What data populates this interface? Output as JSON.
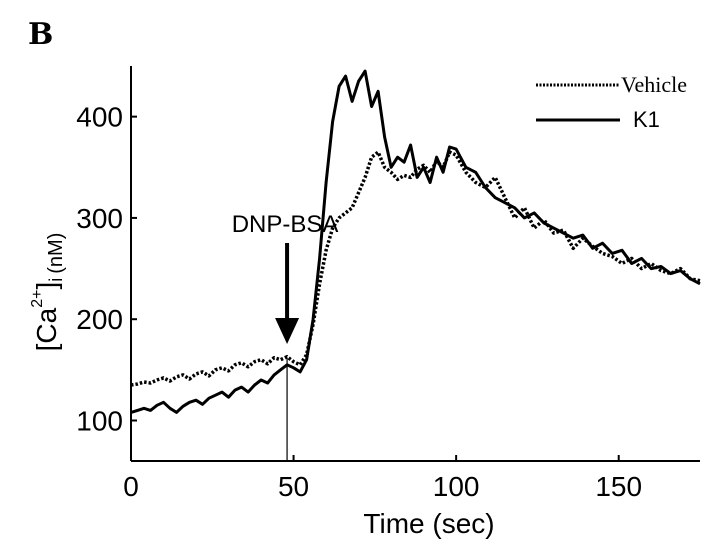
{
  "panel_label": "B",
  "chart_data": {
    "type": "line",
    "xlabel": "Time (sec)",
    "ylabel_main": "[Ca",
    "ylabel_super": "2+",
    "ylabel_close": "]",
    "ylabel_sub": "i",
    "ylabel_unit": "(nM)",
    "xlim": [
      0,
      175
    ],
    "ylim": [
      60,
      450
    ],
    "xticks": [
      0,
      50,
      100,
      150
    ],
    "yticks": [
      100,
      200,
      300,
      400
    ],
    "legend_position": "top-right",
    "annotation": {
      "text": "DNP-BSA",
      "x": 48
    },
    "series": [
      {
        "name": "Vehicle",
        "style": "dotted",
        "x": [
          0,
          2,
          4,
          6,
          8,
          10,
          12,
          14,
          16,
          18,
          20,
          22,
          24,
          26,
          28,
          30,
          32,
          34,
          36,
          38,
          40,
          42,
          44,
          46,
          48,
          50,
          52,
          54,
          56,
          58,
          60,
          62,
          64,
          66,
          68,
          70,
          72,
          74,
          76,
          78,
          80,
          82,
          84,
          86,
          88,
          90,
          92,
          94,
          96,
          98,
          100,
          103,
          106,
          109,
          112,
          115,
          118,
          121,
          124,
          127,
          130,
          133,
          136,
          139,
          142,
          145,
          148,
          151,
          154,
          157,
          160,
          163,
          166,
          169,
          172,
          175
        ],
        "values": [
          135,
          136,
          138,
          137,
          140,
          142,
          139,
          143,
          145,
          141,
          146,
          148,
          144,
          150,
          152,
          149,
          155,
          157,
          153,
          158,
          160,
          156,
          162,
          160,
          163,
          158,
          155,
          165,
          195,
          235,
          268,
          290,
          300,
          305,
          310,
          325,
          340,
          360,
          365,
          350,
          345,
          338,
          342,
          340,
          348,
          352,
          345,
          356,
          350,
          365,
          362,
          345,
          335,
          330,
          340,
          320,
          300,
          310,
          290,
          298,
          285,
          288,
          270,
          280,
          272,
          265,
          262,
          255,
          260,
          250,
          255,
          248,
          245,
          250,
          240,
          238
        ]
      },
      {
        "name": "K1",
        "style": "solid",
        "x": [
          0,
          2,
          4,
          6,
          8,
          10,
          12,
          14,
          16,
          18,
          20,
          22,
          24,
          26,
          28,
          30,
          32,
          34,
          36,
          38,
          40,
          42,
          44,
          46,
          48,
          50,
          52,
          54,
          56,
          58,
          60,
          62,
          64,
          66,
          68,
          70,
          72,
          74,
          76,
          78,
          80,
          82,
          84,
          86,
          88,
          90,
          92,
          94,
          96,
          98,
          100,
          103,
          106,
          109,
          112,
          115,
          118,
          121,
          124,
          127,
          130,
          133,
          136,
          139,
          142,
          145,
          148,
          151,
          154,
          157,
          160,
          163,
          166,
          169,
          172,
          175
        ],
        "values": [
          108,
          110,
          112,
          110,
          115,
          118,
          112,
          108,
          114,
          118,
          120,
          116,
          122,
          125,
          128,
          123,
          130,
          133,
          128,
          135,
          140,
          137,
          145,
          150,
          155,
          152,
          148,
          160,
          200,
          260,
          335,
          395,
          430,
          440,
          415,
          435,
          445,
          410,
          425,
          380,
          350,
          360,
          355,
          372,
          340,
          350,
          335,
          360,
          345,
          370,
          368,
          350,
          345,
          330,
          320,
          315,
          310,
          300,
          305,
          295,
          290,
          285,
          280,
          283,
          270,
          275,
          265,
          268,
          255,
          260,
          250,
          252,
          245,
          248,
          240,
          235
        ]
      }
    ]
  }
}
